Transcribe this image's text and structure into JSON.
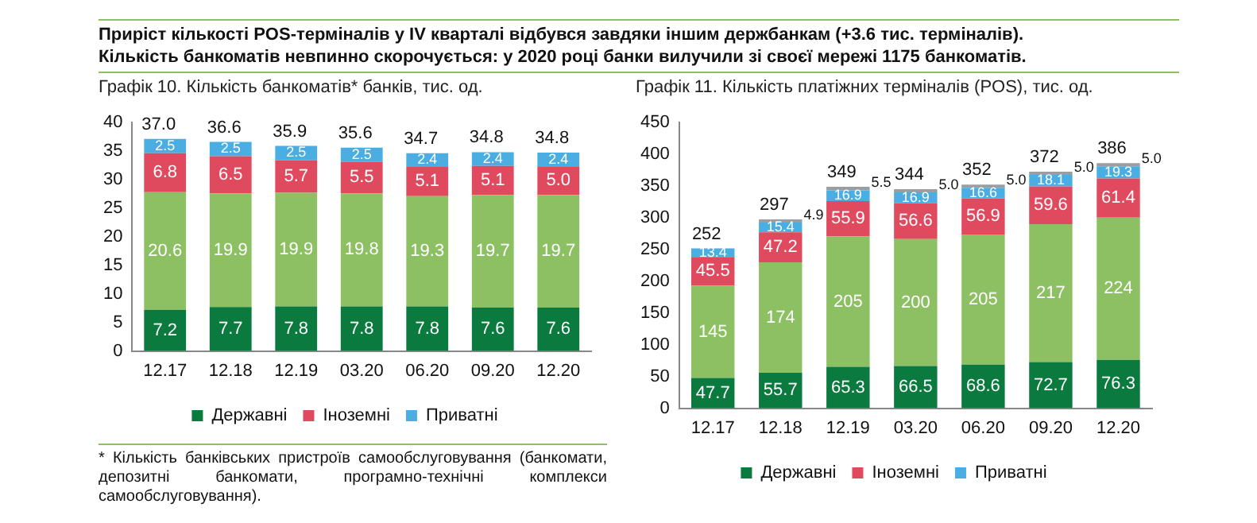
{
  "chart_data": [
    {
      "type": "bar",
      "stacked": true,
      "title": "Приріст кількості POS-терміналів у IV кварталі відбувся завдяки іншим держбанкам (+3.6 тис. терміналів).\nКількість банкоматів невпинно скорочується: у 2020 році банки вилучили зі своєї мережі 1175 банкоматів.",
      "subtitle": "Графік 10. Кількість банкоматів* банків, тис. од.",
      "categories": [
        "12.17",
        "12.18",
        "12.19",
        "03.20",
        "06.20",
        "09.20",
        "12.20"
      ],
      "series": [
        {
          "name": "Державні",
          "color": "#0a7a3e",
          "values": [
            7.2,
            7.7,
            7.8,
            7.8,
            7.8,
            7.6,
            7.6
          ]
        },
        {
          "color": "#8dc063",
          "values": [
            20.6,
            19.9,
            19.9,
            19.8,
            19.3,
            19.7,
            19.7
          ]
        },
        {
          "name": "Іноземні",
          "color": "#e04a5f",
          "values": [
            6.8,
            6.5,
            5.7,
            5.5,
            5.1,
            5.1,
            5.0
          ],
          "value_labels": [
            "6.8",
            "6.5",
            "5.7",
            "5.5",
            "5.1",
            "5.1",
            "5.0"
          ]
        },
        {
          "name": "Приватні",
          "color": "#4aaee3",
          "values": [
            2.5,
            2.5,
            2.5,
            2.5,
            2.4,
            2.4,
            2.4
          ]
        }
      ],
      "totals": [
        "37.0",
        "36.6",
        "35.9",
        "35.6",
        "34.7",
        "34.8",
        "34.8"
      ],
      "data_labels": true,
      "ylim": [
        0,
        40
      ],
      "yticks": [
        0,
        5,
        10,
        15,
        20,
        25,
        30,
        35,
        40
      ],
      "legend": "bottom",
      "annotations": [
        "* Кількість банківських пристроїв самообслуговування (банкомати, депозитні банкомати, програмно-технічні комплекси самообслуговування)."
      ]
    },
    {
      "type": "bar",
      "stacked": true,
      "subtitle": "Графік 11. Кількість платіжних терміналів (POS), тис. од.",
      "categories": [
        "12.17",
        "12.18",
        "12.19",
        "03.20",
        "06.20",
        "09.20",
        "12.20"
      ],
      "series": [
        {
          "name": "Державні",
          "color": "#0a7a3e",
          "values": [
            47.7,
            55.7,
            65.3,
            66.5,
            68.6,
            72.7,
            76.3
          ]
        },
        {
          "color": "#8dc063",
          "values": [
            145,
            174,
            205,
            200,
            205,
            217,
            224
          ]
        },
        {
          "name": "Іноземні",
          "color": "#e04a5f",
          "values": [
            45.5,
            47.2,
            55.9,
            56.6,
            56.9,
            59.6,
            61.4
          ]
        },
        {
          "name": "Приватні",
          "color": "#4aaee3",
          "values": [
            13.4,
            15.4,
            16.9,
            16.9,
            16.6,
            18.1,
            19.3
          ]
        },
        {
          "color": "#9a9ea2",
          "values": [
            null,
            4.9,
            5.5,
            5.0,
            5.0,
            5.0,
            5.0
          ],
          "value_labels": [
            null,
            "4.9",
            "5.5",
            "5.0",
            "5.0",
            "5.0",
            "5.0"
          ]
        }
      ],
      "totals": [
        "252",
        "297",
        "349",
        "344",
        "352",
        "372",
        "386"
      ],
      "data_labels": true,
      "ylim": [
        0,
        450
      ],
      "yticks": [
        0,
        50,
        100,
        150,
        200,
        250,
        300,
        350,
        400,
        450
      ],
      "legend": "bottom"
    }
  ]
}
